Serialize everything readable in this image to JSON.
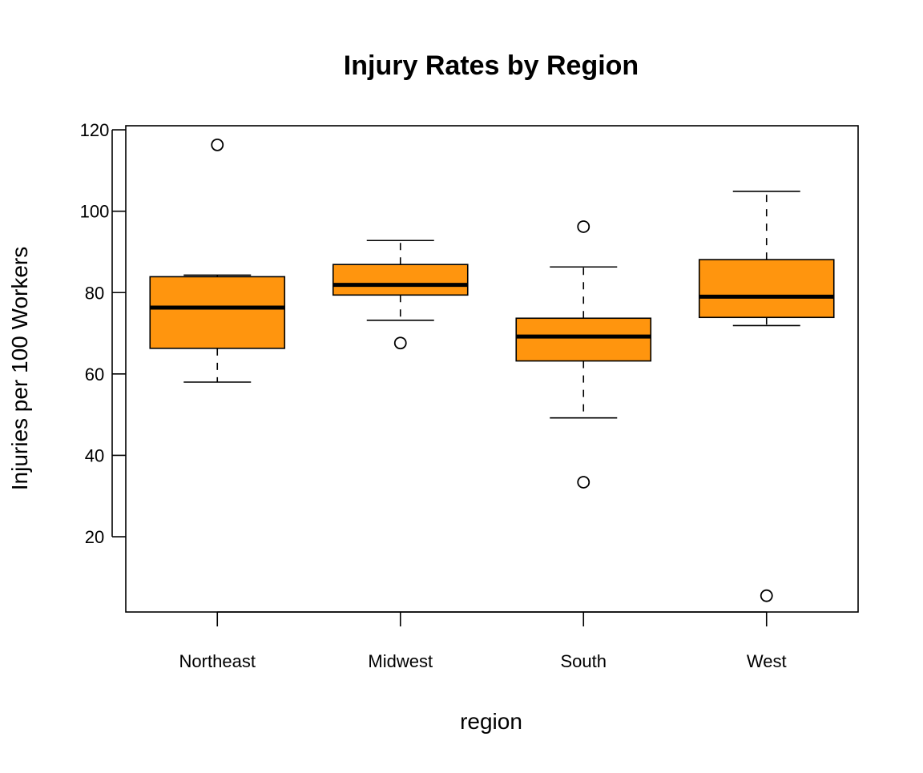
{
  "chart_data": {
    "type": "boxplot",
    "title": "Injury Rates by Region",
    "xlabel": "region",
    "ylabel": "Injuries per 100 Workers",
    "ylim": [
      1.5,
      121
    ],
    "yticks": [
      20,
      40,
      60,
      80,
      100,
      120
    ],
    "grid": false,
    "legend": "none",
    "colors": {
      "box_fill": "#FF950E",
      "stroke": "#000000"
    },
    "categories": [
      "Northeast",
      "Midwest",
      "South",
      "West"
    ],
    "boxes": [
      {
        "name": "Northeast",
        "whisker_low": 58,
        "q1": 66.3,
        "median": 76.3,
        "q3": 83.9,
        "whisker_high": 84.3,
        "outliers": [
          116.3
        ]
      },
      {
        "name": "Midwest",
        "whisker_low": 73.2,
        "q1": 79.4,
        "median": 81.9,
        "q3": 86.9,
        "whisker_high": 92.8,
        "outliers": [
          67.6
        ]
      },
      {
        "name": "South",
        "whisker_low": 49.2,
        "q1": 63.2,
        "median": 69.2,
        "q3": 73.7,
        "whisker_high": 86.3,
        "outliers": [
          96.2,
          33.4
        ]
      },
      {
        "name": "West",
        "whisker_low": 71.9,
        "q1": 73.9,
        "median": 79.0,
        "q3": 88.1,
        "whisker_high": 104.9,
        "outliers": [
          5.5
        ]
      }
    ]
  }
}
